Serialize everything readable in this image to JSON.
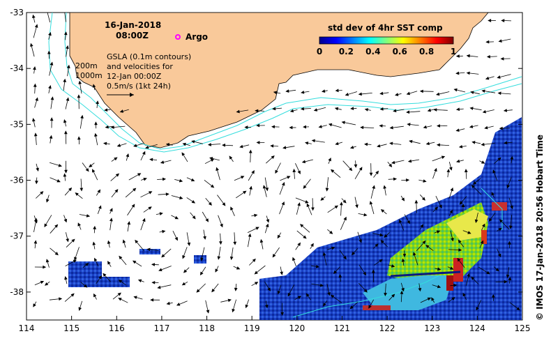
{
  "header": {
    "date": "16-Jan-2018",
    "time": "08:00Z"
  },
  "argo_label": "Argo",
  "info_lines": [
    "GSLA (0.1m contours)",
    "and velocities for",
    "12-Jan 00:00Z",
    "0.5m/s (1kt 24h)"
  ],
  "depth_labels": [
    "200m",
    "1000m"
  ],
  "colorbar": {
    "title": "std dev of 4hr SST comp",
    "ticks": [
      "0",
      "0.2",
      "0.4",
      "0.6",
      "0.8",
      "1"
    ]
  },
  "x_ticks": [
    "114",
    "115",
    "116",
    "117",
    "118",
    "119",
    "120",
    "121",
    "122",
    "123",
    "124",
    "125"
  ],
  "y_ticks": [
    "-33",
    "-34",
    "-35",
    "-36",
    "-37",
    "-38"
  ],
  "credit": "© IMOS 17-Jan-2018 20:56 Hobart Time",
  "colors": {
    "land": "#f9c99a",
    "bathymetry": "#33dddd",
    "argo": "#ff00ff",
    "arrow": "#000000"
  },
  "map_extent": {
    "lon_min": 114,
    "lon_max": 125,
    "lat_min": -38.5,
    "lat_max": -33
  }
}
